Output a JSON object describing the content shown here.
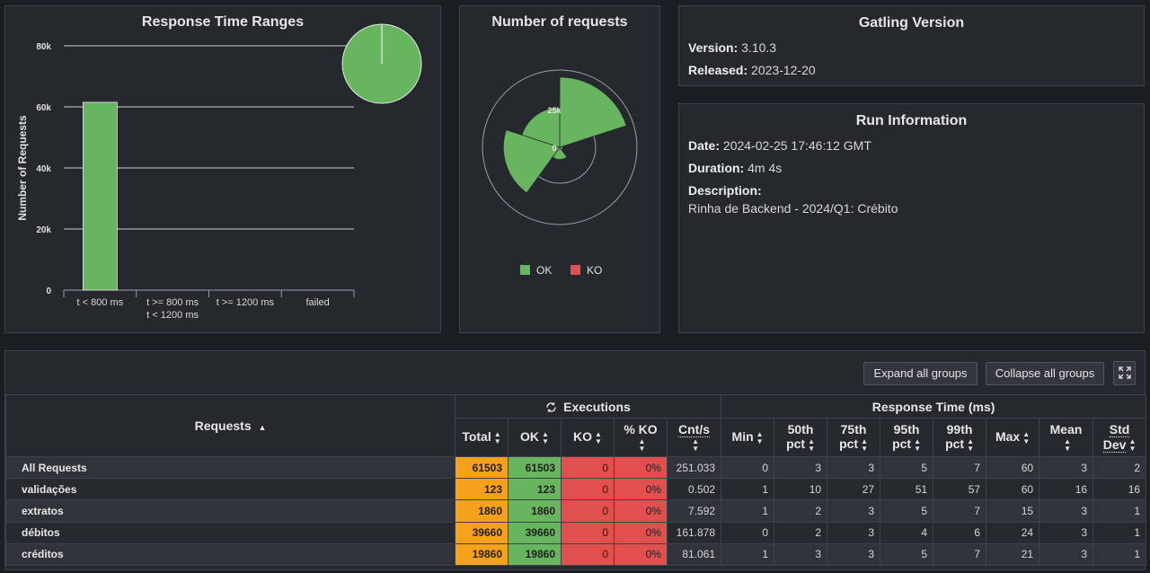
{
  "response_time_ranges": {
    "title": "Response Time Ranges",
    "chart_data": {
      "type": "bar",
      "title": "Response Time Ranges",
      "ylabel": "Number of Requests",
      "categories": [
        "t < 800 ms",
        "t >= 800 ms\nt < 1200 ms",
        "t >= 1200 ms",
        "failed"
      ],
      "category_lines": [
        [
          "t < 800 ms"
        ],
        [
          "t >= 800 ms",
          "t < 1200 ms"
        ],
        [
          "t >= 1200 ms"
        ],
        [
          "failed"
        ]
      ],
      "values": [
        61503,
        0,
        0,
        0
      ],
      "yticks": [
        "0",
        "20k",
        "40k",
        "60k",
        "80k"
      ],
      "ytick_values": [
        0,
        20000,
        40000,
        60000,
        80000
      ],
      "ylim": [
        0,
        80000
      ],
      "color": "#67b55e",
      "pie_values": [
        61503,
        0,
        0,
        0
      ]
    }
  },
  "number_of_requests": {
    "title": "Number of requests",
    "chart_data": {
      "type": "polar",
      "labels": [
        "All Requests",
        "validações",
        "extratos",
        "débitos",
        "créditos"
      ],
      "ok": [
        61503,
        123,
        1860,
        39660,
        19860
      ],
      "ko": [
        0,
        0,
        0,
        0,
        0
      ],
      "rticks": [
        "25k",
        "0"
      ],
      "rtick_values": [
        25000,
        0
      ],
      "rmax": 61503,
      "legend": [
        {
          "name": "OK",
          "color": "#67b55e"
        },
        {
          "name": "KO",
          "color": "#e0504e"
        }
      ]
    }
  },
  "gatling_version": {
    "title": "Gatling Version",
    "version_label": "Version:",
    "version": "3.10.3",
    "released_label": "Released:",
    "released": "2023-12-20"
  },
  "run_information": {
    "title": "Run Information",
    "date_label": "Date:",
    "date": "2024-02-25 17:46:12 GMT",
    "duration_label": "Duration:",
    "duration": "4m 4s",
    "description_label": "Description:",
    "description": "Rinha de Backend - 2024/Q1: Crébito"
  },
  "toolbar": {
    "expand_label": "Expand all groups",
    "collapse_label": "Collapse all groups"
  },
  "stats_table": {
    "requests_header": "Requests",
    "executions_header": "Executions",
    "response_time_header": "Response Time (ms)",
    "columns": [
      "Total",
      "OK",
      "KO",
      "% KO",
      "Cnt/s",
      "Min",
      "50th",
      "pct",
      "75th",
      "pct",
      "95th",
      "pct",
      "99th",
      "pct",
      "Max",
      "Mean",
      "Std",
      "Dev"
    ],
    "rows": [
      {
        "name": "All Requests",
        "total": "61503",
        "ok": "61503",
        "ko": "0",
        "pko": "0%",
        "cnt": "251.033",
        "min": "0",
        "p50": "3",
        "p75": "3",
        "p95": "5",
        "p99": "7",
        "max": "60",
        "mean": "3",
        "std": "2"
      },
      {
        "name": "validações",
        "total": "123",
        "ok": "123",
        "ko": "0",
        "pko": "0%",
        "cnt": "0.502",
        "min": "1",
        "p50": "10",
        "p75": "27",
        "p95": "51",
        "p99": "57",
        "max": "60",
        "mean": "16",
        "std": "16"
      },
      {
        "name": "extratos",
        "total": "1860",
        "ok": "1860",
        "ko": "0",
        "pko": "0%",
        "cnt": "7.592",
        "min": "1",
        "p50": "2",
        "p75": "3",
        "p95": "5",
        "p99": "7",
        "max": "15",
        "mean": "3",
        "std": "1"
      },
      {
        "name": "débitos",
        "total": "39660",
        "ok": "39660",
        "ko": "0",
        "pko": "0%",
        "cnt": "161.878",
        "min": "0",
        "p50": "2",
        "p75": "3",
        "p95": "4",
        "p99": "6",
        "max": "24",
        "mean": "3",
        "std": "1"
      },
      {
        "name": "créditos",
        "total": "19860",
        "ok": "19860",
        "ko": "0",
        "pko": "0%",
        "cnt": "81.061",
        "min": "1",
        "p50": "3",
        "p75": "3",
        "p95": "5",
        "p99": "7",
        "max": "21",
        "mean": "3",
        "std": "1"
      }
    ]
  },
  "colors": {
    "ok": "#67b55e",
    "ko": "#e0504e",
    "total": "#f5a11c"
  }
}
